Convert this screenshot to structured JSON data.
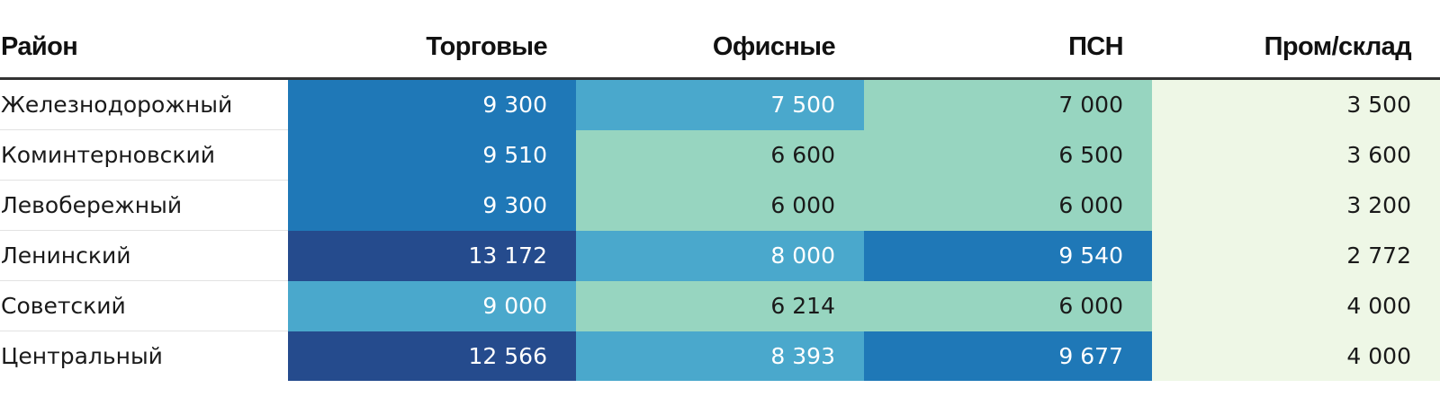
{
  "chart_data": {
    "type": "heatmap",
    "columns": [
      "Район",
      "Торговые",
      "Офисные",
      "ПСН",
      "Пром/склад"
    ],
    "rows": [
      {
        "district": "Железнодорожный",
        "values": [
          "9 300",
          "7 500",
          "7 000",
          "3 500"
        ],
        "numbers": [
          9300,
          7500,
          7000,
          3500
        ]
      },
      {
        "district": "Коминтерновский",
        "values": [
          "9 510",
          "6 600",
          "6 500",
          "3 600"
        ],
        "numbers": [
          9510,
          6600,
          6500,
          3600
        ]
      },
      {
        "district": "Левобережный",
        "values": [
          "9 300",
          "6 000",
          "6 000",
          "3 200"
        ],
        "numbers": [
          9300,
          6000,
          6000,
          3200
        ]
      },
      {
        "district": "Ленинский",
        "values": [
          "13 172",
          "8 000",
          "9 540",
          "2 772"
        ],
        "numbers": [
          13172,
          8000,
          9540,
          2772
        ]
      },
      {
        "district": "Советский",
        "values": [
          "9 000",
          "6 214",
          "6 000",
          "4 000"
        ],
        "numbers": [
          9000,
          6214,
          6000,
          4000
        ]
      },
      {
        "district": "Центральный",
        "values": [
          "12 566",
          "8 393",
          "9 677",
          "4 000"
        ],
        "numbers": [
          12566,
          8393,
          9677,
          4000
        ]
      }
    ],
    "color_scale": [
      {
        "max": 5000,
        "bg": "#eef7e6",
        "fg": "#1a1a1a"
      },
      {
        "max": 7000,
        "bg": "#97d5c0",
        "fg": "#1a1a1a"
      },
      {
        "max": 9100,
        "bg": "#4aa8cc",
        "fg": "#ffffff"
      },
      {
        "max": 12000,
        "bg": "#1f78b7",
        "fg": "#ffffff"
      },
      {
        "max": 100000,
        "bg": "#254b8d",
        "fg": "#ffffff"
      }
    ]
  }
}
